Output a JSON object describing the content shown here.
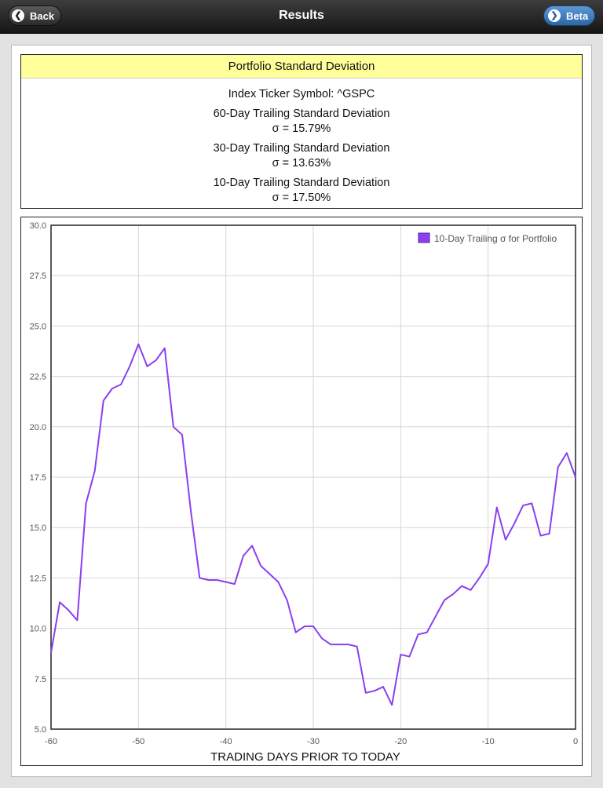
{
  "navbar": {
    "title": "Results",
    "back_label": "Back",
    "beta_label": "Beta"
  },
  "stats": {
    "header": "Portfolio Standard Deviation",
    "ticker_line": "Index Ticker Symbol: ^GSPC",
    "sd60_label": "60-Day Trailing Standard Deviation",
    "sd60_value": "σ = 15.79%",
    "sd30_label": "30-Day Trailing Standard Deviation",
    "sd30_value": "σ = 13.63%",
    "sd10_label": "10-Day Trailing Standard Deviation",
    "sd10_value": "σ = 17.50%"
  },
  "colors": {
    "series": "#8a3ff0",
    "header_bg": "#ffff99",
    "grid": "#d6d6d6"
  },
  "chart_data": {
    "type": "line",
    "xlabel": "TRADING DAYS PRIOR TO TODAY",
    "ylabel": "",
    "xlim": [
      -60,
      0
    ],
    "ylim": [
      5.0,
      30.0
    ],
    "x_ticks": [
      -60,
      -50,
      -40,
      -30,
      -20,
      -10,
      0
    ],
    "y_ticks": [
      "5.0",
      "7.5",
      "10.0",
      "12.5",
      "15.0",
      "17.5",
      "20.0",
      "22.5",
      "25.0",
      "27.5",
      "30.0"
    ],
    "grid": true,
    "legend_position": "top-right",
    "series": [
      {
        "name": "10-Day Trailing σ for Portfolio",
        "x": [
          -60,
          -59,
          -58,
          -57,
          -56,
          -55,
          -54,
          -53,
          -52,
          -51,
          -50,
          -49,
          -48,
          -47,
          -46,
          -45,
          -44,
          -43,
          -42,
          -41,
          -40,
          -39,
          -38,
          -37,
          -36,
          -35,
          -34,
          -33,
          -32,
          -31,
          -30,
          -29,
          -28,
          -27,
          -26,
          -25,
          -24,
          -23,
          -22,
          -21,
          -20,
          -19,
          -18,
          -17,
          -16,
          -15,
          -14,
          -13,
          -12,
          -11,
          -10,
          -9,
          -8,
          -7,
          -6,
          -5,
          -4,
          -3,
          -2,
          -1,
          0
        ],
        "values": [
          8.8,
          11.3,
          10.9,
          10.4,
          16.2,
          17.8,
          21.3,
          21.9,
          22.1,
          23.0,
          24.1,
          23.0,
          23.3,
          23.9,
          20.0,
          19.6,
          15.8,
          12.5,
          12.4,
          12.4,
          12.3,
          12.2,
          13.6,
          14.1,
          13.1,
          12.7,
          12.3,
          11.4,
          9.8,
          10.1,
          10.1,
          9.5,
          9.2,
          9.2,
          9.2,
          9.1,
          6.8,
          6.9,
          7.1,
          6.2,
          8.7,
          8.6,
          9.7,
          9.8,
          10.6,
          11.4,
          11.7,
          12.1,
          11.9,
          12.5,
          13.2,
          16.0,
          14.4,
          15.2,
          16.1,
          16.2,
          14.6,
          14.7,
          18.0,
          18.7,
          17.5
        ]
      }
    ]
  }
}
